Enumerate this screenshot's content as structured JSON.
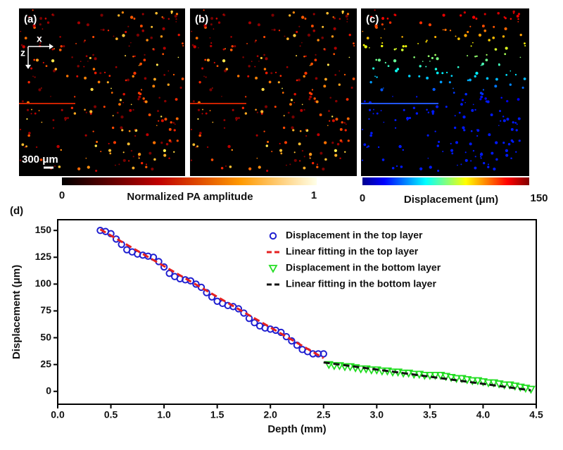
{
  "panels": [
    {
      "label": "(a)"
    },
    {
      "label": "(b)"
    },
    {
      "label": "(c)"
    }
  ],
  "axes_labels": {
    "x": "x",
    "z": "z"
  },
  "scale_bar": "300 μm",
  "colorbars": [
    {
      "label": "Normalized PA amplitude",
      "min": "0",
      "max": "1"
    },
    {
      "label": "Displacement (μm)",
      "min": "0",
      "max": "150"
    }
  ],
  "chart_data": {
    "type": "scatter",
    "panel_label": "(d)",
    "x_label": "Depth (mm)",
    "y_label": "Displacement (μm)",
    "xlim": [
      0,
      4.5
    ],
    "ylim": [
      -12,
      160
    ],
    "xticks": [
      {
        "value": 0,
        "label": "0.0"
      },
      {
        "value": 0.5,
        "label": "0.5"
      },
      {
        "value": 1,
        "label": "1.0"
      },
      {
        "value": 1.5,
        "label": "1.5"
      },
      {
        "value": 2,
        "label": "2.0"
      },
      {
        "value": 2.5,
        "label": "2.5"
      },
      {
        "value": 3,
        "label": "3.0"
      },
      {
        "value": 3.5,
        "label": "3.5"
      },
      {
        "value": 4,
        "label": "4.0"
      },
      {
        "value": 4.5,
        "label": "4.5"
      }
    ],
    "yticks": [
      0,
      25,
      50,
      75,
      100,
      125,
      150
    ],
    "legend": "top-right",
    "series": [
      {
        "name": "Displacement  in the top layer",
        "color": "#1f1fd0",
        "marker": "circle",
        "x": [
          0.4,
          0.45,
          0.5,
          0.55,
          0.6,
          0.65,
          0.7,
          0.75,
          0.8,
          0.85,
          0.9,
          0.95,
          1.0,
          1.05,
          1.1,
          1.15,
          1.2,
          1.25,
          1.3,
          1.35,
          1.4,
          1.45,
          1.5,
          1.55,
          1.6,
          1.65,
          1.7,
          1.75,
          1.8,
          1.85,
          1.9,
          1.95,
          2.0,
          2.05,
          2.1,
          2.15,
          2.2,
          2.25,
          2.3,
          2.35,
          2.4,
          2.45,
          2.5
        ],
        "values": [
          150,
          149,
          147,
          142,
          137,
          132,
          130,
          128,
          127,
          126,
          125,
          121,
          116,
          110,
          107,
          105,
          104,
          103,
          100,
          97,
          92,
          88,
          84,
          82,
          80,
          79,
          77,
          73,
          68,
          64,
          61,
          59,
          58,
          57,
          55,
          51,
          47,
          43,
          39,
          37,
          35,
          35,
          35
        ]
      },
      {
        "name": "Linear fitting in the top layer",
        "color": "#e52020",
        "marker": "dash",
        "x": [
          0.4,
          2.5
        ],
        "values": [
          151,
          31
        ]
      },
      {
        "name": "Displacement  in the bottom layer",
        "color": "#22dd22",
        "marker": "triangle",
        "x": [
          2.55,
          2.6,
          2.65,
          2.7,
          2.75,
          2.8,
          2.85,
          2.9,
          2.95,
          3.0,
          3.05,
          3.1,
          3.15,
          3.2,
          3.25,
          3.3,
          3.35,
          3.4,
          3.45,
          3.5,
          3.55,
          3.6,
          3.65,
          3.7,
          3.75,
          3.8,
          3.85,
          3.9,
          3.95,
          4.0,
          4.05,
          4.1,
          4.15,
          4.2,
          4.25,
          4.3,
          4.35,
          4.4,
          4.45
        ],
        "values": [
          25,
          24,
          24,
          23,
          23,
          22,
          21,
          21,
          20,
          20,
          19,
          19,
          18,
          18,
          17,
          17,
          16,
          16,
          15,
          15,
          15,
          15,
          14,
          13,
          12,
          12,
          11,
          10,
          10,
          9,
          8,
          8,
          7,
          6,
          6,
          5,
          4,
          3,
          2
        ]
      },
      {
        "name": "Linear fitting in the bottom layer",
        "color": "#111111",
        "marker": "dash",
        "x": [
          2.5,
          4.45
        ],
        "values": [
          27,
          1
        ]
      }
    ]
  }
}
